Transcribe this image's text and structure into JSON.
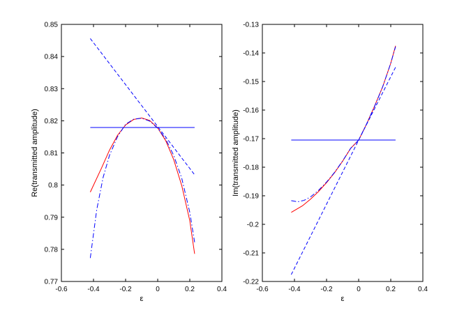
{
  "chart_data": [
    {
      "type": "line",
      "xlabel": "ε",
      "ylabel": "Re(transmitted amplitude)",
      "xlim": [
        -0.6,
        0.4
      ],
      "ylim": [
        0.77,
        0.85
      ],
      "xticks": [
        "-0.6",
        "-0.4",
        "-0.2",
        "0",
        "0.2",
        "0.4"
      ],
      "yticks": [
        "0.77",
        "0.78",
        "0.79",
        "0.8",
        "0.81",
        "0.82",
        "0.83",
        "0.84",
        "0.85"
      ],
      "grid": false,
      "series": [
        {
          "style": "solid",
          "color": "#ff0000",
          "x": [
            -0.42,
            -0.35,
            -0.3,
            -0.25,
            -0.2,
            -0.15,
            -0.1,
            -0.05,
            0,
            0.05,
            0.1,
            0.15,
            0.2,
            0.23
          ],
          "y": [
            0.7978,
            0.8053,
            0.8109,
            0.8155,
            0.8187,
            0.8204,
            0.8209,
            0.8201,
            0.8178,
            0.8138,
            0.8079,
            0.7998,
            0.7889,
            0.7786
          ]
        },
        {
          "style": "dashdot",
          "color": "#0000ff",
          "x": [
            -0.42,
            -0.38,
            -0.34,
            -0.3,
            -0.25,
            -0.2,
            -0.15,
            -0.1,
            -0.05,
            0,
            0.05,
            0.1,
            0.15,
            0.2,
            0.23
          ],
          "y": [
            0.7773,
            0.7923,
            0.8024,
            0.8093,
            0.8151,
            0.8189,
            0.8205,
            0.8208,
            0.8199,
            0.8177,
            0.8143,
            0.8092,
            0.8021,
            0.7915,
            0.7822
          ]
        },
        {
          "style": "dashed",
          "color": "#0000ff",
          "x": [
            -0.42,
            0.23
          ],
          "y": [
            0.8456,
            0.8032
          ]
        },
        {
          "style": "solid",
          "color": "#0000ff",
          "x": [
            -0.42,
            0.23
          ],
          "y": [
            0.8179,
            0.8179
          ]
        }
      ]
    },
    {
      "type": "line",
      "xlabel": "ε",
      "ylabel": "Im(transmitted amplitude)",
      "xlim": [
        -0.6,
        0.4
      ],
      "ylim": [
        -0.22,
        -0.13
      ],
      "xticks": [
        "-0.6",
        "-0.4",
        "-0.2",
        "0",
        "0.2",
        "0.4"
      ],
      "yticks": [
        "-0.22",
        "-0.21",
        "-0.2",
        "-0.19",
        "-0.18",
        "-0.17",
        "-0.16",
        "-0.15",
        "-0.14",
        "-0.13"
      ],
      "grid": false,
      "series": [
        {
          "style": "solid",
          "color": "#ff0000",
          "x": [
            -0.42,
            -0.35,
            -0.3,
            -0.25,
            -0.2,
            -0.15,
            -0.1,
            -0.05,
            0,
            0.05,
            0.1,
            0.15,
            0.2,
            0.23
          ],
          "y": [
            -0.1958,
            -0.1935,
            -0.1912,
            -0.1885,
            -0.1854,
            -0.1819,
            -0.1779,
            -0.1734,
            -0.1705,
            -0.1648,
            -0.1585,
            -0.1518,
            -0.1436,
            -0.1375
          ]
        },
        {
          "style": "dashdot",
          "color": "#0000ff",
          "x": [
            -0.42,
            -0.38,
            -0.34,
            -0.3,
            -0.25,
            -0.2,
            -0.15,
            -0.1,
            -0.05,
            0,
            0.05,
            0.1,
            0.15,
            0.2,
            0.23
          ],
          "y": [
            -0.1917,
            -0.1921,
            -0.1916,
            -0.1904,
            -0.1881,
            -0.1852,
            -0.1818,
            -0.1778,
            -0.1734,
            -0.1705,
            -0.1648,
            -0.1586,
            -0.1518,
            -0.1436,
            -0.1378
          ]
        },
        {
          "style": "dashed",
          "color": "#0000ff",
          "x": [
            -0.42,
            0,
            0.23
          ],
          "y": [
            -0.2176,
            -0.1705,
            -0.145
          ]
        },
        {
          "style": "solid",
          "color": "#0000ff",
          "x": [
            -0.42,
            0.23
          ],
          "y": [
            -0.1705,
            -0.1705
          ]
        }
      ]
    }
  ]
}
